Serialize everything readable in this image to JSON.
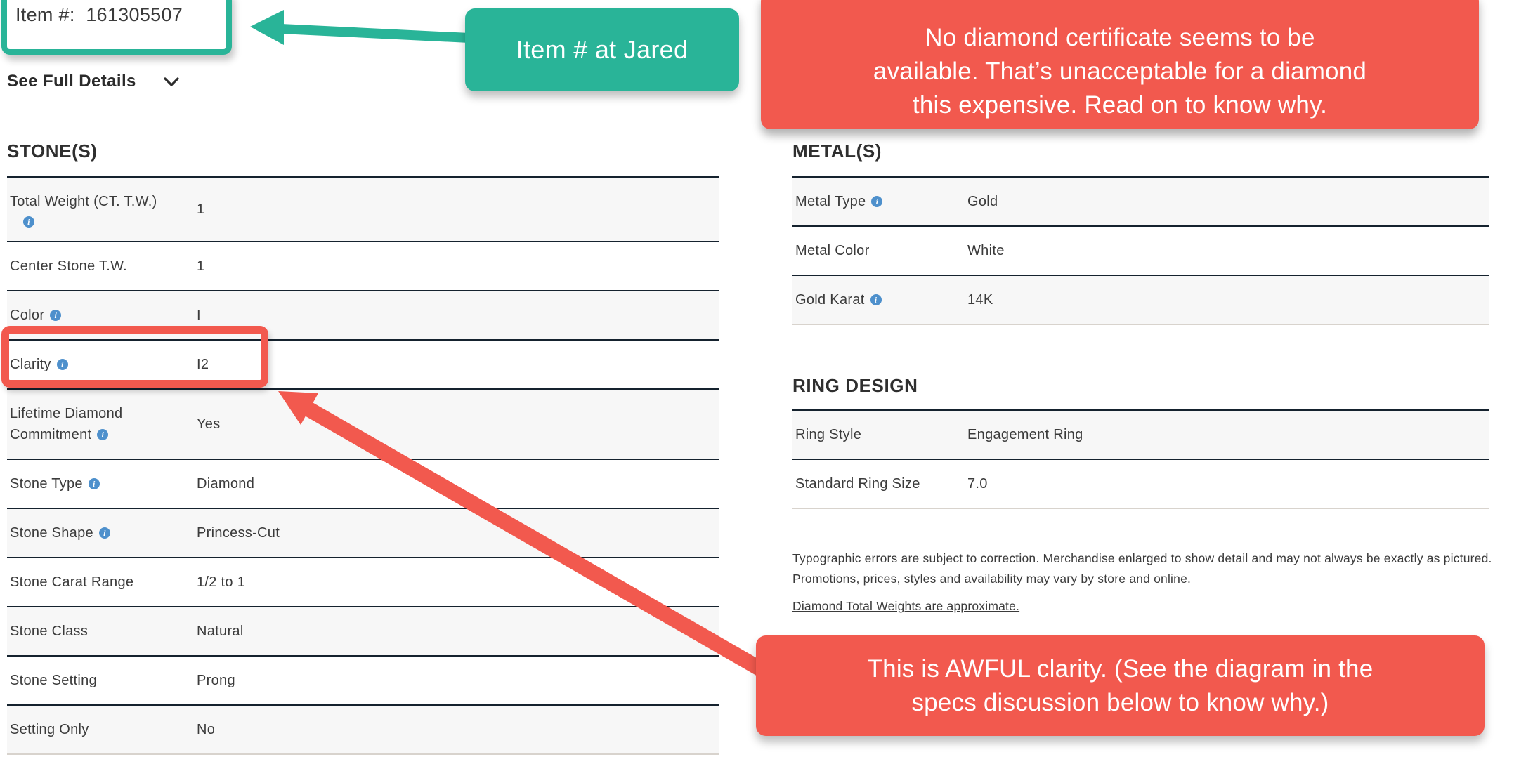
{
  "page": {
    "item_number": "Item #:  161305507",
    "see_full_details_label": "See Full Details",
    "stones": {
      "heading": "STONE(S)",
      "rows": [
        {
          "label": "Total Weight (CT. T.W.)",
          "info": true,
          "value": "1"
        },
        {
          "label": "Center Stone T.W.",
          "info": false,
          "value": "1"
        },
        {
          "label": "Color",
          "info": true,
          "value": "I"
        },
        {
          "label": "Clarity",
          "info": true,
          "value": "I2"
        },
        {
          "label": "Lifetime Diamond Commitment",
          "info": true,
          "value": "Yes"
        },
        {
          "label": "Stone Type",
          "info": true,
          "value": "Diamond"
        },
        {
          "label": "Stone Shape",
          "info": true,
          "value": "Princess-Cut"
        },
        {
          "label": "Stone Carat Range",
          "info": false,
          "value": "1/2 to 1"
        },
        {
          "label": "Stone Class",
          "info": false,
          "value": "Natural"
        },
        {
          "label": "Stone Setting",
          "info": false,
          "value": "Prong"
        },
        {
          "label": "Setting Only",
          "info": false,
          "value": "No"
        }
      ]
    },
    "metals": {
      "heading": "METAL(S)",
      "rows": [
        {
          "label": "Metal Type",
          "info": true,
          "value": "Gold"
        },
        {
          "label": "Metal Color",
          "info": false,
          "value": "White"
        },
        {
          "label": "Gold Karat",
          "info": true,
          "value": "14K"
        }
      ]
    },
    "ring_design": {
      "heading": "RING DESIGN",
      "rows": [
        {
          "label": "Ring Style",
          "info": false,
          "value": "Engagement Ring"
        },
        {
          "label": "Standard Ring Size",
          "info": false,
          "value": "7.0"
        }
      ]
    },
    "disclaimer": "Typographic errors are subject to correction. Merchandise enlarged to show detail and may not always be exactly as pictured. Promotions, prices, styles and availability may vary by store and online.",
    "weights_link": "Diamond Total Weights are approximate."
  },
  "annotations": {
    "item_callout": "Item # at Jared",
    "top_banner_lines": [
      "No diamond certificate seems to be",
      "available. That’s unacceptable for a diamond",
      "this expensive. Read on to know why."
    ],
    "clarity_callout_lines": [
      "This is AWFUL clarity. (See the diagram in the",
      "specs discussion below to know why.)"
    ]
  },
  "colors": {
    "annotation_red": "#F2594E",
    "annotation_teal": "#29B498",
    "info_blue": "#4E90CC",
    "table_line_dark": "#15222e",
    "row_alt_gray": "#f7f7f7"
  }
}
